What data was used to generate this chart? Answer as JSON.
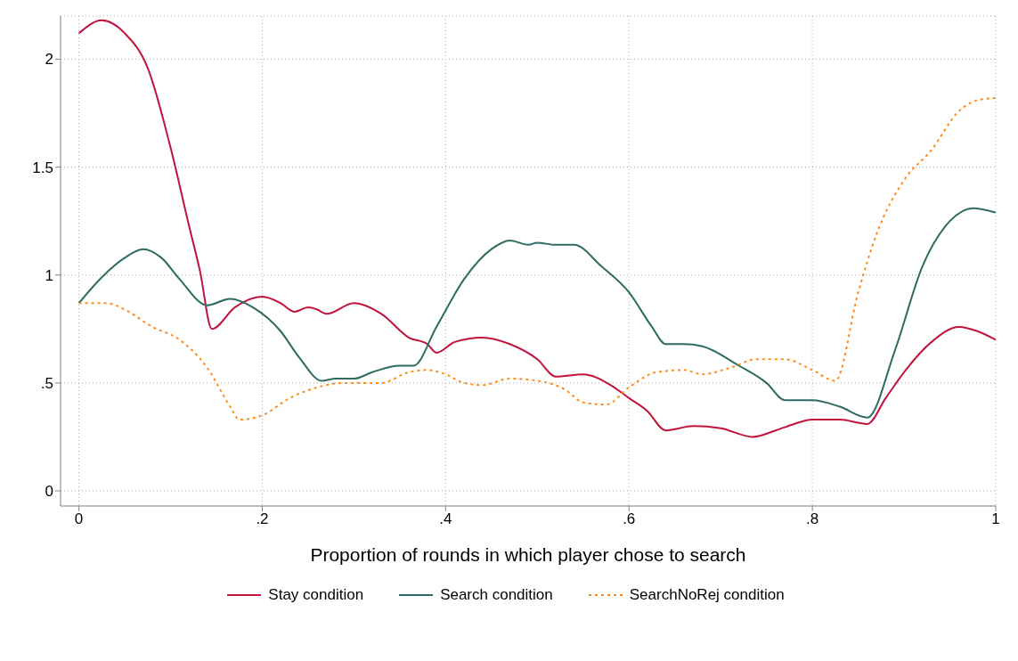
{
  "chart_data": {
    "type": "line",
    "xlabel": "Proportion of rounds in which player chose to search",
    "xlim": [
      -0.02,
      1
    ],
    "ylim": [
      -0.07,
      2.2
    ],
    "xticks": [
      0,
      {
        "value": 0.2,
        "label": ".2"
      },
      {
        "value": 0.4,
        "label": ".4"
      },
      {
        "value": 0.6,
        "label": ".6"
      },
      {
        "value": 0.8,
        "label": ".8"
      },
      1
    ],
    "yticks": [
      0,
      {
        "value": 0.5,
        "label": ".5"
      },
      1,
      1.5,
      2
    ],
    "grid": true,
    "legend": "bottom",
    "marker": "none",
    "series": [
      {
        "name": "Stay condition",
        "color": "#c0143c",
        "line_style": "solid",
        "x": [
          0,
          0.025,
          0.05,
          0.075,
          0.1,
          0.12,
          0.132,
          0.145,
          0.17,
          0.2,
          0.22,
          0.235,
          0.25,
          0.26,
          0.27,
          0.3,
          0.33,
          0.36,
          0.38,
          0.39,
          0.41,
          0.44,
          0.47,
          0.5,
          0.52,
          0.55,
          0.58,
          0.6,
          0.62,
          0.64,
          0.67,
          0.7,
          0.735,
          0.76,
          0.78,
          0.8,
          0.83,
          0.86,
          0.88,
          0.9,
          0.93,
          0.96,
          0.98,
          1
        ],
        "values": [
          2.12,
          2.18,
          2.12,
          1.96,
          1.59,
          1.23,
          1.02,
          0.75,
          0.85,
          0.9,
          0.87,
          0.83,
          0.85,
          0.84,
          0.82,
          0.87,
          0.82,
          0.71,
          0.68,
          0.64,
          0.69,
          0.71,
          0.68,
          0.61,
          0.53,
          0.54,
          0.49,
          0.43,
          0.37,
          0.28,
          0.3,
          0.29,
          0.25,
          0.28,
          0.31,
          0.33,
          0.33,
          0.31,
          0.43,
          0.55,
          0.69,
          0.76,
          0.74,
          0.7
        ]
      },
      {
        "name": "Search condition",
        "color": "#2e6b62",
        "line_style": "solid",
        "x": [
          0,
          0.025,
          0.05,
          0.07,
          0.09,
          0.11,
          0.14,
          0.165,
          0.19,
          0.22,
          0.24,
          0.265,
          0.28,
          0.3,
          0.32,
          0.35,
          0.365,
          0.39,
          0.42,
          0.45,
          0.47,
          0.49,
          0.5,
          0.52,
          0.54,
          0.57,
          0.6,
          0.625,
          0.64,
          0.66,
          0.68,
          0.72,
          0.75,
          0.77,
          0.8,
          0.83,
          0.86,
          0.89,
          0.92,
          0.95,
          0.975,
          1
        ],
        "values": [
          0.87,
          0.99,
          1.08,
          1.12,
          1.08,
          0.98,
          0.86,
          0.89,
          0.85,
          0.74,
          0.62,
          0.51,
          0.52,
          0.52,
          0.55,
          0.58,
          0.58,
          0.76,
          0.98,
          1.12,
          1.16,
          1.14,
          1.15,
          1.14,
          1.14,
          1.04,
          0.92,
          0.76,
          0.68,
          0.68,
          0.67,
          0.58,
          0.5,
          0.42,
          0.42,
          0.39,
          0.34,
          0.65,
          1.04,
          1.25,
          1.31,
          1.29
        ]
      },
      {
        "name": "SearchNoRej condition",
        "color": "#ff8c1a",
        "line_style": "dotted",
        "x": [
          0,
          0.03,
          0.05,
          0.08,
          0.11,
          0.14,
          0.165,
          0.175,
          0.2,
          0.23,
          0.26,
          0.29,
          0.33,
          0.36,
          0.38,
          0.4,
          0.42,
          0.44,
          0.47,
          0.5,
          0.53,
          0.55,
          0.575,
          0.6,
          0.63,
          0.66,
          0.68,
          0.71,
          0.74,
          0.77,
          0.8,
          0.825,
          0.85,
          0.87,
          0.9,
          0.93,
          0.96,
          0.98,
          1
        ],
        "values": [
          0.87,
          0.87,
          0.84,
          0.76,
          0.7,
          0.57,
          0.39,
          0.33,
          0.35,
          0.43,
          0.48,
          0.5,
          0.5,
          0.55,
          0.56,
          0.54,
          0.5,
          0.49,
          0.52,
          0.51,
          0.47,
          0.41,
          0.4,
          0.48,
          0.55,
          0.56,
          0.54,
          0.57,
          0.61,
          0.61,
          0.56,
          0.51,
          0.92,
          1.19,
          1.44,
          1.58,
          1.76,
          1.81,
          1.82
        ]
      }
    ]
  }
}
